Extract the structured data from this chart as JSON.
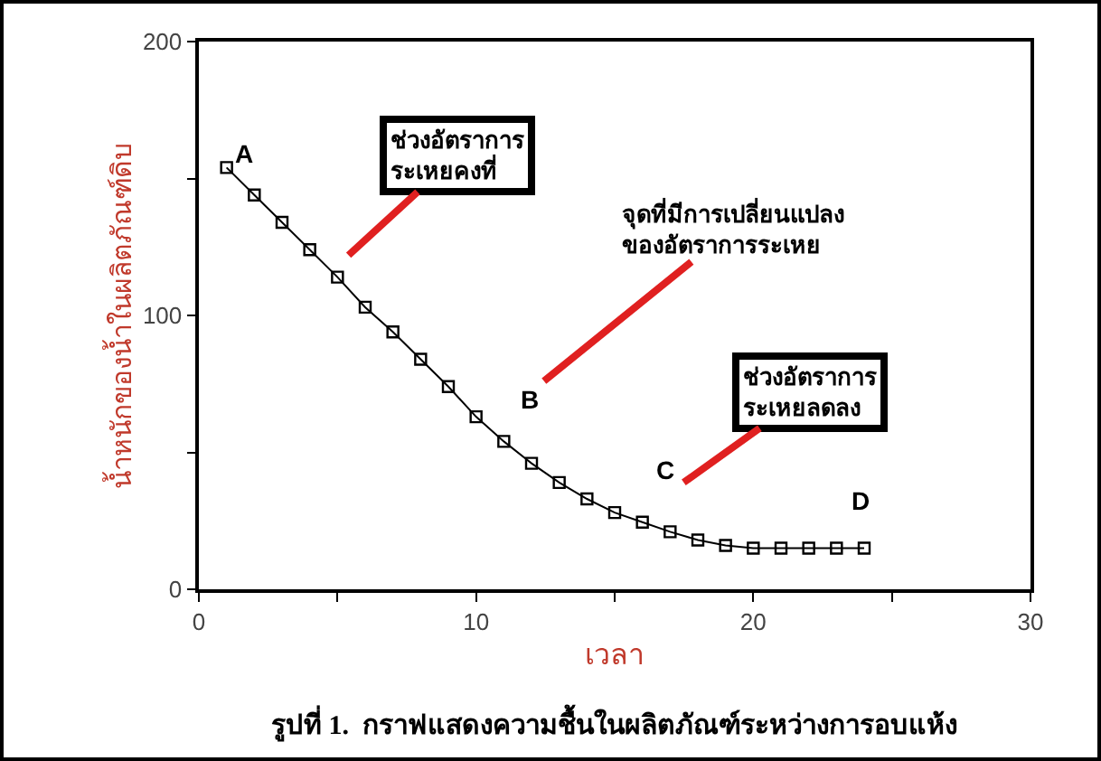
{
  "chart_data": {
    "type": "line",
    "xlabel": "เวลา",
    "ylabel": "น้ำหนักของน้ำในผลิตภัณฑ์ดิบ",
    "x": [
      1,
      2,
      3,
      4,
      5,
      6,
      7,
      8,
      9,
      10,
      11,
      12,
      13,
      14,
      15,
      16,
      17,
      18,
      19,
      20,
      21,
      22,
      23,
      24
    ],
    "series": [
      {
        "color": "#000000",
        "values": [
          154,
          144,
          134,
          124,
          114,
          103,
          94,
          84,
          74,
          63,
          54,
          46,
          39,
          33,
          28,
          24.5,
          21,
          18,
          16,
          15,
          15,
          15,
          15,
          15
        ]
      }
    ],
    "xlim": [
      0,
      30
    ],
    "ylim": [
      0,
      200
    ],
    "xticks": [
      0,
      {
        "value": 5,
        "label": null
      },
      10,
      {
        "value": 15,
        "label": null
      },
      20,
      {
        "value": 25,
        "label": null
      },
      30
    ],
    "yticks": [
      0,
      {
        "value": 50,
        "label": null
      },
      100,
      {
        "value": 150,
        "label": null
      },
      200
    ],
    "marker": "square",
    "line_style": "solid",
    "grid": false,
    "annotations": [
      "A",
      "B",
      "C",
      "D",
      "ช่วงอัตราการ\nระเหยคงที่",
      "จุดที่มีการเปลี่ยนแปลง\nของอัตราการระเหย",
      "ช่วงอัตราการ\nระเหยลดลง",
      "รูปที่ 1.  กราฟแสดงความชื้นในผลิตภัณฑ์ระหว่างการอบแห้ง"
    ]
  }
}
